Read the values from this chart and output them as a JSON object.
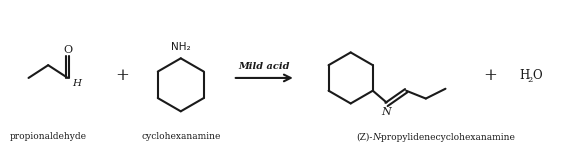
{
  "bg_color": "#ffffff",
  "line_color": "#1a1a1a",
  "text_color": "#1a1a1a",
  "lw": 1.5,
  "label_propionaldehyde": "propionaldehyde",
  "label_cyclohexanamine": "cyclohexanamine",
  "label_product": "(Z)-N-propylidenecyclohexanamine",
  "label_mild_acid": "Mild acid",
  "label_H": "H",
  "label_NH2": "NH₂",
  "label_N": "N",
  "label_O": "O",
  "label_plus": "+"
}
